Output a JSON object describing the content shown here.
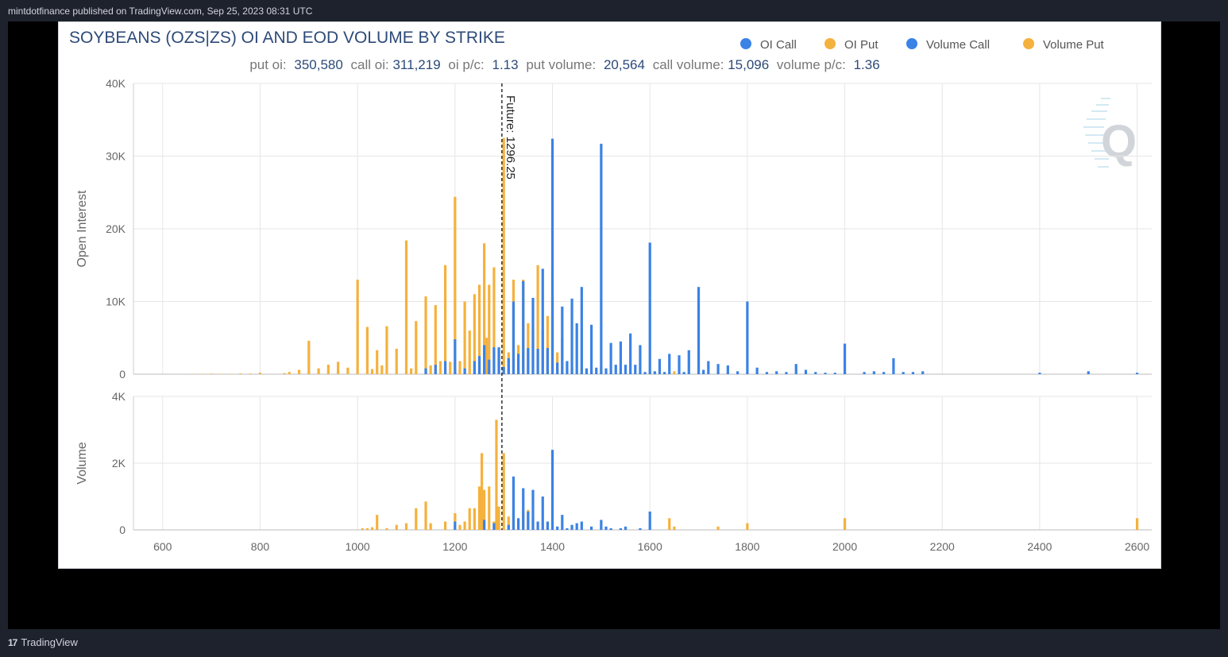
{
  "header": {
    "publish_info": "mintdotfinance published on TradingView.com, Sep 25, 2023 08:31 UTC"
  },
  "footer": {
    "brand": "TradingView",
    "logo_glyph": "17"
  },
  "colors": {
    "call": "#3b82e6",
    "put": "#f5b13d",
    "grid": "#e6e6e6",
    "title": "#2d4a78",
    "text": "#666666"
  },
  "chart_data": {
    "type": "bar",
    "title": "SOYBEANS (OZS|ZS) OI AND EOD VOLUME BY STRIKE",
    "summary": {
      "put_oi_label": "put oi:",
      "put_oi": "350,580",
      "call_oi_label": "call oi:",
      "call_oi": "311,219",
      "oi_pc_label": "oi p/c:",
      "oi_pc": "1.13",
      "put_volume_label": "put volume:",
      "put_volume": "20,564",
      "call_volume_label": "call volume:",
      "call_volume": "15,096",
      "volume_pc_label": "volume p/c:",
      "volume_pc": "1.36"
    },
    "legend": [
      "OI Call",
      "OI Put",
      "Volume Call",
      "Volume Put"
    ],
    "legend_position": "top-right",
    "future_label": "Future: 1296.25",
    "future_value": 1296.25,
    "xlim": [
      540,
      2630
    ],
    "x_ticks": [
      600,
      800,
      1000,
      1200,
      1400,
      1600,
      1800,
      2000,
      2200,
      2400,
      2600
    ],
    "grid": true,
    "panels": [
      {
        "ylabel": "Open Interest",
        "ylim": [
          0,
          40000
        ],
        "y_ticks": [
          0,
          10000,
          20000,
          30000,
          40000
        ],
        "y_tick_labels": [
          "0",
          "10K",
          "20K",
          "30K",
          "40K"
        ],
        "series": [
          {
            "name": "OI Put",
            "color_key": "put",
            "points": [
              [
                660,
                50
              ],
              [
                680,
                50
              ],
              [
                700,
                80
              ],
              [
                720,
                60
              ],
              [
                740,
                60
              ],
              [
                760,
                100
              ],
              [
                780,
                80
              ],
              [
                800,
                200
              ],
              [
                850,
                150
              ],
              [
                860,
                300
              ],
              [
                880,
                600
              ],
              [
                900,
                4600
              ],
              [
                920,
                800
              ],
              [
                940,
                1300
              ],
              [
                960,
                1700
              ],
              [
                980,
                900
              ],
              [
                1000,
                13000
              ],
              [
                1020,
                6500
              ],
              [
                1030,
                700
              ],
              [
                1040,
                3300
              ],
              [
                1050,
                1200
              ],
              [
                1060,
                6600
              ],
              [
                1080,
                3500
              ],
              [
                1100,
                18400
              ],
              [
                1110,
                800
              ],
              [
                1120,
                7300
              ],
              [
                1140,
                10700
              ],
              [
                1150,
                1200
              ],
              [
                1160,
                9500
              ],
              [
                1170,
                1800
              ],
              [
                1180,
                15000
              ],
              [
                1190,
                1700
              ],
              [
                1200,
                24400
              ],
              [
                1210,
                1800
              ],
              [
                1220,
                10000
              ],
              [
                1230,
                6000
              ],
              [
                1240,
                11000
              ],
              [
                1250,
                12300
              ],
              [
                1260,
                18000
              ],
              [
                1265,
                5000
              ],
              [
                1270,
                12300
              ],
              [
                1280,
                14700
              ],
              [
                1290,
                3600
              ],
              [
                1300,
                32500
              ],
              [
                1310,
                3000
              ],
              [
                1320,
                13000
              ],
              [
                1330,
                4000
              ],
              [
                1340,
                13000
              ],
              [
                1350,
                7000
              ],
              [
                1360,
                6100
              ],
              [
                1370,
                15000
              ],
              [
                1380,
                6100
              ],
              [
                1390,
                8000
              ],
              [
                1400,
                11000
              ],
              [
                1410,
                3000
              ],
              [
                1420,
                5000
              ],
              [
                1440,
                1000
              ],
              [
                1460,
                800
              ],
              [
                1480,
                600
              ],
              [
                1500,
                1000
              ],
              [
                1520,
                400
              ],
              [
                1540,
                300
              ],
              [
                1560,
                200
              ],
              [
                1580,
                200
              ],
              [
                1600,
                500
              ],
              [
                1650,
                400
              ],
              [
                1700,
                200
              ],
              [
                1800,
                150
              ],
              [
                2000,
                300
              ]
            ]
          },
          {
            "name": "OI Call",
            "color_key": "call",
            "points": [
              [
                1140,
                800
              ],
              [
                1160,
                1300
              ],
              [
                1180,
                1800
              ],
              [
                1200,
                4800
              ],
              [
                1220,
                800
              ],
              [
                1240,
                1800
              ],
              [
                1250,
                2500
              ],
              [
                1260,
                4000
              ],
              [
                1270,
                2000
              ],
              [
                1280,
                3700
              ],
              [
                1290,
                3700
              ],
              [
                1300,
                1000
              ],
              [
                1310,
                2200
              ],
              [
                1320,
                10000
              ],
              [
                1330,
                2800
              ],
              [
                1340,
                12800
              ],
              [
                1350,
                3600
              ],
              [
                1360,
                10500
              ],
              [
                1370,
                3500
              ],
              [
                1380,
                14500
              ],
              [
                1390,
                3600
              ],
              [
                1400,
                32400
              ],
              [
                1410,
                1600
              ],
              [
                1420,
                9300
              ],
              [
                1430,
                1800
              ],
              [
                1440,
                10400
              ],
              [
                1450,
                7000
              ],
              [
                1460,
                12000
              ],
              [
                1470,
                800
              ],
              [
                1480,
                6800
              ],
              [
                1490,
                900
              ],
              [
                1500,
                31700
              ],
              [
                1510,
                800
              ],
              [
                1520,
                4300
              ],
              [
                1530,
                1300
              ],
              [
                1540,
                4500
              ],
              [
                1550,
                1300
              ],
              [
                1560,
                5600
              ],
              [
                1570,
                1300
              ],
              [
                1580,
                4000
              ],
              [
                1590,
                300
              ],
              [
                1600,
                18100
              ],
              [
                1610,
                400
              ],
              [
                1620,
                2100
              ],
              [
                1630,
                300
              ],
              [
                1640,
                2800
              ],
              [
                1660,
                2600
              ],
              [
                1670,
                300
              ],
              [
                1680,
                3300
              ],
              [
                1700,
                12000
              ],
              [
                1710,
                600
              ],
              [
                1720,
                1800
              ],
              [
                1740,
                1400
              ],
              [
                1760,
                1200
              ],
              [
                1780,
                400
              ],
              [
                1800,
                10000
              ],
              [
                1820,
                900
              ],
              [
                1840,
                300
              ],
              [
                1860,
                400
              ],
              [
                1880,
                300
              ],
              [
                1900,
                1400
              ],
              [
                1920,
                600
              ],
              [
                1940,
                300
              ],
              [
                1960,
                200
              ],
              [
                1980,
                200
              ],
              [
                2000,
                4200
              ],
              [
                2040,
                300
              ],
              [
                2060,
                400
              ],
              [
                2080,
                300
              ],
              [
                2100,
                2200
              ],
              [
                2120,
                300
              ],
              [
                2140,
                300
              ],
              [
                2160,
                400
              ],
              [
                2400,
                200
              ],
              [
                2500,
                400
              ],
              [
                2600,
                200
              ]
            ]
          }
        ]
      },
      {
        "ylabel": "Volume",
        "ylim": [
          0,
          4000
        ],
        "y_ticks": [
          0,
          2000,
          4000
        ],
        "y_tick_labels": [
          "0",
          "2K",
          "4K"
        ],
        "series": [
          {
            "name": "Volume Put",
            "color_key": "put",
            "points": [
              [
                1010,
                50
              ],
              [
                1020,
                50
              ],
              [
                1030,
                80
              ],
              [
                1040,
                450
              ],
              [
                1060,
                50
              ],
              [
                1080,
                150
              ],
              [
                1100,
                200
              ],
              [
                1120,
                650
              ],
              [
                1140,
                850
              ],
              [
                1150,
                200
              ],
              [
                1180,
                250
              ],
              [
                1200,
                500
              ],
              [
                1210,
                150
              ],
              [
                1220,
                250
              ],
              [
                1230,
                650
              ],
              [
                1240,
                650
              ],
              [
                1250,
                1300
              ],
              [
                1255,
                2300
              ],
              [
                1260,
                1200
              ],
              [
                1270,
                1300
              ],
              [
                1280,
                250
              ],
              [
                1285,
                3300
              ],
              [
                1290,
                700
              ],
              [
                1300,
                2300
              ],
              [
                1310,
                400
              ],
              [
                1320,
                450
              ],
              [
                1330,
                250
              ],
              [
                1340,
                550
              ],
              [
                1350,
                600
              ],
              [
                1360,
                350
              ],
              [
                1640,
                350
              ],
              [
                1650,
                100
              ],
              [
                1740,
                100
              ],
              [
                1800,
                200
              ],
              [
                2000,
                350
              ],
              [
                2600,
                350
              ]
            ]
          },
          {
            "name": "Volume Call",
            "color_key": "call",
            "points": [
              [
                1200,
                250
              ],
              [
                1260,
                300
              ],
              [
                1280,
                200
              ],
              [
                1310,
                150
              ],
              [
                1320,
                1600
              ],
              [
                1330,
                350
              ],
              [
                1340,
                1250
              ],
              [
                1350,
                550
              ],
              [
                1360,
                1200
              ],
              [
                1370,
                250
              ],
              [
                1380,
                1000
              ],
              [
                1390,
                250
              ],
              [
                1400,
                2400
              ],
              [
                1410,
                100
              ],
              [
                1420,
                450
              ],
              [
                1430,
                50
              ],
              [
                1440,
                150
              ],
              [
                1450,
                200
              ],
              [
                1460,
                250
              ],
              [
                1480,
                100
              ],
              [
                1500,
                300
              ],
              [
                1510,
                100
              ],
              [
                1520,
                50
              ],
              [
                1540,
                50
              ],
              [
                1550,
                100
              ],
              [
                1580,
                50
              ],
              [
                1600,
                550
              ]
            ]
          }
        ]
      }
    ]
  }
}
